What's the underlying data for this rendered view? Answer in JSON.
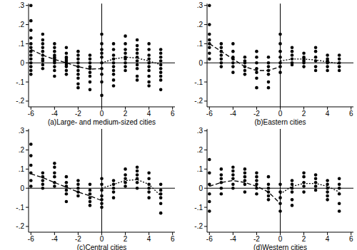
{
  "chart_data": [
    {
      "type": "scatter",
      "xlabel": "(a)Large- and medium-sized cities",
      "xlim": [
        -6.2,
        6.2
      ],
      "ylim": [
        -0.23,
        0.31
      ],
      "xticks": [
        -6,
        -4,
        -2,
        0,
        2,
        4,
        6
      ],
      "yticks": [
        {
          "value": -0.2,
          "label": "-.2"
        },
        {
          "value": -0.1,
          "label": "-.1"
        },
        0,
        {
          "value": 0.1,
          "label": ".1"
        },
        {
          "value": 0.2,
          "label": ".2"
        },
        {
          "value": 0.3,
          "label": ".3"
        }
      ],
      "annotations": [
        {
          "type": "vline",
          "x": 0
        },
        {
          "type": "hline",
          "y": 0
        }
      ],
      "series": [
        {
          "type": "scatter",
          "marker": "circle",
          "color": "#000000",
          "x": [
            -6,
            -6,
            -6,
            -6,
            -6,
            -6,
            -6,
            -6,
            -6,
            -6,
            -6,
            -6,
            -6,
            -5,
            -5,
            -5,
            -5,
            -5,
            -5,
            -5,
            -5,
            -5,
            -5,
            -4,
            -4,
            -4,
            -4,
            -4,
            -4,
            -4,
            -4,
            -4,
            -4,
            -4,
            -3,
            -3,
            -3,
            -3,
            -3,
            -3,
            -3,
            -3,
            -3,
            -3,
            -2,
            -2,
            -2,
            -2,
            -2,
            -2,
            -2,
            -2,
            -2,
            -2,
            -1,
            -1,
            -1,
            -1,
            -1,
            -1,
            -1,
            -1,
            -1,
            0,
            0,
            0,
            0,
            0,
            0,
            0,
            0,
            0,
            0,
            1,
            1,
            1,
            1,
            1,
            1,
            1,
            1,
            1,
            1,
            2,
            2,
            2,
            2,
            2,
            2,
            2,
            2,
            2,
            3,
            3,
            3,
            3,
            3,
            3,
            3,
            3,
            3,
            3,
            4,
            4,
            4,
            4,
            4,
            4,
            4,
            4,
            4,
            4,
            5,
            5,
            5,
            5,
            5,
            5,
            5,
            5,
            5,
            5
          ],
          "values": [
            0.3,
            0.22,
            0.17,
            0.13,
            0.1,
            0.08,
            0.06,
            0.04,
            0.02,
            0,
            -0.02,
            -0.04,
            -0.06,
            0.15,
            0.12,
            0.1,
            0.08,
            0.06,
            0.04,
            0.02,
            0.01,
            -0.01,
            -0.03,
            0.1,
            0.08,
            0.06,
            0.04,
            0.03,
            0.02,
            0.01,
            0,
            -0.02,
            -0.04,
            -0.07,
            0.08,
            0.05,
            0.03,
            0.02,
            0.01,
            0,
            -0.01,
            -0.02,
            -0.04,
            -0.06,
            0.06,
            0.04,
            0.02,
            0,
            -0.02,
            -0.04,
            -0.06,
            -0.08,
            -0.11,
            -0.13,
            0.04,
            0.02,
            0,
            -0.02,
            -0.03,
            -0.05,
            -0.07,
            -0.1,
            -0.14,
            0.15,
            0.1,
            0.07,
            0.05,
            0.03,
            0,
            -0.03,
            -0.06,
            -0.1,
            -0.17,
            0.1,
            0.07,
            0.04,
            0.02,
            0,
            -0.02,
            -0.04,
            -0.06,
            -0.09,
            -0.12,
            0.14,
            0.1,
            0.07,
            0.05,
            0.03,
            0.02,
            0,
            -0.02,
            -0.04,
            0.12,
            0.09,
            0.07,
            0.05,
            0.03,
            0.01,
            -0.01,
            -0.03,
            -0.07,
            -0.09,
            0.1,
            0.07,
            0.04,
            0.02,
            0,
            -0.02,
            -0.04,
            -0.07,
            -0.1,
            -0.12,
            0.07,
            0.05,
            0.03,
            0.01,
            -0.01,
            -0.03,
            -0.05,
            -0.07,
            -0.09,
            -0.14
          ]
        },
        {
          "type": "line",
          "line_style": "dashed",
          "color": "#000000",
          "x": [
            -6,
            -5,
            -4,
            -3,
            -2,
            -1,
            0
          ],
          "values": [
            0.07,
            0.04,
            0.018,
            0.0,
            -0.02,
            -0.033,
            -0.03
          ]
        },
        {
          "type": "line",
          "line_style": "dotted",
          "color": "#000000",
          "x": [
            0,
            1,
            2,
            3,
            4,
            5
          ],
          "values": [
            0.0,
            0.02,
            0.03,
            0.025,
            0.01,
            -0.01
          ]
        }
      ]
    },
    {
      "type": "scatter",
      "xlabel": "(b)Eastern cities",
      "xlim": [
        -6.2,
        6.2
      ],
      "ylim": [
        -0.23,
        0.31
      ],
      "xticks": [
        -6,
        -4,
        -2,
        0,
        2,
        4,
        6
      ],
      "yticks": [
        {
          "value": -0.2,
          "label": "-.2"
        },
        {
          "value": -0.1,
          "label": "-.1"
        },
        0,
        {
          "value": 0.1,
          "label": ".1"
        },
        {
          "value": 0.2,
          "label": ".2"
        },
        {
          "value": 0.3,
          "label": ".3"
        }
      ],
      "annotations": [
        {
          "type": "vline",
          "x": 0
        },
        {
          "type": "hline",
          "y": 0
        }
      ],
      "series": [
        {
          "type": "scatter",
          "marker": "circle",
          "color": "#000000",
          "x": [
            -6,
            -6,
            -6,
            -6,
            -6,
            -6,
            -6,
            -6,
            -5,
            -5,
            -5,
            -5,
            -5,
            -5,
            -5,
            -4,
            -4,
            -4,
            -4,
            -4,
            -4,
            -4,
            -3,
            -3,
            -3,
            -3,
            -3,
            -3,
            -2,
            -2,
            -2,
            -2,
            -2,
            -2,
            -2,
            -1,
            -1,
            -1,
            -1,
            -1,
            -1,
            -1,
            0,
            0,
            0,
            0,
            0,
            0,
            0,
            1,
            1,
            1,
            1,
            1,
            1,
            2,
            2,
            2,
            2,
            2,
            2,
            3,
            3,
            3,
            3,
            3,
            3,
            4,
            4,
            4,
            4,
            4,
            4,
            5,
            5,
            5,
            5,
            5
          ],
          "values": [
            0.3,
            0.2,
            0.15,
            0.12,
            0.1,
            0.08,
            0.05,
            0.02,
            0.1,
            0.08,
            0.06,
            0.04,
            0.02,
            0,
            -0.02,
            0.1,
            0.06,
            0.03,
            0.02,
            0,
            -0.02,
            -0.05,
            0.03,
            0.01,
            0,
            -0.02,
            -0.04,
            -0.06,
            0.06,
            0.03,
            0,
            -0.03,
            -0.05,
            -0.08,
            -0.13,
            0.03,
            0,
            -0.02,
            -0.04,
            -0.06,
            -0.1,
            -0.13,
            0.15,
            0.1,
            0.06,
            0.03,
            0,
            -0.02,
            -0.05,
            0.08,
            0.06,
            0.04,
            0.02,
            0,
            -0.01,
            0.05,
            0.03,
            0.02,
            0.01,
            0,
            -0.02,
            0.08,
            0.06,
            0.03,
            0.01,
            -0.02,
            -0.04,
            0.04,
            0.02,
            0.01,
            0,
            -0.02,
            -0.04,
            0.04,
            0.02,
            0,
            -0.02,
            -0.04
          ]
        },
        {
          "type": "line",
          "line_style": "dashed",
          "color": "#000000",
          "x": [
            -6,
            -5,
            -4,
            -3,
            -2,
            -1,
            0
          ],
          "values": [
            0.1,
            0.06,
            0.02,
            -0.02,
            -0.04,
            -0.04,
            -0.02
          ]
        },
        {
          "type": "line",
          "line_style": "dotted",
          "color": "#000000",
          "x": [
            0,
            1,
            2,
            3,
            4,
            5
          ],
          "values": [
            0.01,
            0.02,
            0.02,
            0.015,
            0.005,
            -0.005
          ]
        }
      ]
    },
    {
      "type": "scatter",
      "xlabel": "(c)Central cities",
      "xlim": [
        -6.2,
        6.2
      ],
      "ylim": [
        -0.23,
        0.31
      ],
      "xticks": [
        -6,
        -4,
        -2,
        0,
        2,
        4,
        6
      ],
      "yticks": [
        {
          "value": -0.2,
          "label": "-.2"
        },
        {
          "value": -0.1,
          "label": "-.1"
        },
        0,
        {
          "value": 0.1,
          "label": ".1"
        },
        {
          "value": 0.2,
          "label": ".2"
        },
        {
          "value": 0.3,
          "label": ".3"
        }
      ],
      "annotations": [
        {
          "type": "vline",
          "x": 0
        },
        {
          "type": "hline",
          "y": 0
        }
      ],
      "series": [
        {
          "type": "scatter",
          "marker": "circle",
          "color": "#000000",
          "x": [
            -6,
            -6,
            -6,
            -6,
            -6,
            -6,
            -5,
            -5,
            -5,
            -5,
            -5,
            -4,
            -4,
            -4,
            -4,
            -4,
            -4,
            -3,
            -3,
            -3,
            -3,
            -3,
            -3,
            -2,
            -2,
            -2,
            -2,
            -2,
            -1,
            -1,
            -1,
            -1,
            -1,
            -1,
            0,
            0,
            0,
            0,
            0,
            0,
            0,
            1,
            1,
            1,
            1,
            1,
            2,
            2,
            2,
            2,
            2,
            3,
            3,
            3,
            3,
            3,
            3,
            4,
            4,
            4,
            4,
            4,
            4,
            5,
            5,
            5,
            5,
            5,
            5
          ],
          "values": [
            0.23,
            0.17,
            0.12,
            0.08,
            0.04,
            0.01,
            0.08,
            0.06,
            0.04,
            0.02,
            0,
            0.13,
            0.11,
            0.08,
            0.06,
            0.03,
            0.01,
            0.06,
            0.03,
            0.01,
            -0.01,
            -0.03,
            -0.07,
            0.04,
            0.02,
            0,
            -0.02,
            -0.04,
            0.02,
            -0.01,
            -0.03,
            -0.05,
            -0.07,
            -0.09,
            0.05,
            0.02,
            -0.01,
            -0.04,
            -0.06,
            -0.08,
            -0.1,
            0.04,
            0.02,
            0,
            -0.02,
            -0.05,
            0.1,
            0.07,
            0.05,
            0.03,
            0.01,
            0.11,
            0.09,
            0.07,
            0.05,
            0.03,
            0,
            0.08,
            0.05,
            0.02,
            0,
            -0.02,
            -0.05,
            0.02,
            -0.01,
            -0.03,
            -0.05,
            -0.08,
            -0.13
          ]
        },
        {
          "type": "line",
          "line_style": "dashed",
          "color": "#000000",
          "x": [
            -6,
            -5,
            -4,
            -3,
            -2,
            -1,
            0
          ],
          "values": [
            0.075,
            0.055,
            0.03,
            0.005,
            -0.02,
            -0.04,
            -0.065
          ]
        },
        {
          "type": "line",
          "line_style": "dotted",
          "color": "#000000",
          "x": [
            0,
            1,
            2,
            3,
            4,
            5
          ],
          "values": [
            0.0,
            0.02,
            0.04,
            0.045,
            0.02,
            -0.04
          ]
        }
      ]
    },
    {
      "type": "scatter",
      "xlabel": "(d)Western cities",
      "xlim": [
        -6.2,
        6.2
      ],
      "ylim": [
        -0.23,
        0.31
      ],
      "xticks": [
        -6,
        -4,
        -2,
        0,
        2,
        4,
        6
      ],
      "yticks": [
        {
          "value": -0.2,
          "label": "-.2"
        },
        {
          "value": -0.1,
          "label": "-.1"
        },
        0,
        {
          "value": 0.1,
          "label": ".1"
        },
        {
          "value": 0.2,
          "label": ".2"
        },
        {
          "value": 0.3,
          "label": ".3"
        }
      ],
      "annotations": [
        {
          "type": "vline",
          "x": 0
        },
        {
          "type": "hline",
          "y": 0
        }
      ],
      "series": [
        {
          "type": "scatter",
          "marker": "circle",
          "color": "#000000",
          "x": [
            -6,
            -6,
            -6,
            -6,
            -6,
            -6,
            -5,
            -5,
            -5,
            -5,
            -5,
            -5,
            -4,
            -4,
            -4,
            -4,
            -4,
            -4,
            -3,
            -3,
            -3,
            -3,
            -3,
            -3,
            -2,
            -2,
            -2,
            -2,
            -2,
            -2,
            -1,
            -1,
            -1,
            -1,
            -1,
            -1,
            0,
            0,
            0,
            0,
            0,
            1,
            1,
            1,
            1,
            1,
            1,
            2,
            2,
            2,
            2,
            2,
            3,
            3,
            3,
            3,
            3,
            4,
            4,
            4,
            4,
            4,
            4,
            5,
            5,
            5,
            5,
            5,
            5
          ],
          "values": [
            0.15,
            0.08,
            0.02,
            -0.03,
            -0.07,
            -0.12,
            0.1,
            0.07,
            0.05,
            0.03,
            0,
            -0.03,
            0.11,
            0.09,
            0.07,
            0.05,
            0.02,
            0,
            0.1,
            0.08,
            0.06,
            0.04,
            0.02,
            -0.02,
            0.08,
            0.06,
            0.04,
            0.02,
            0,
            -0.03,
            0.06,
            0.02,
            0,
            -0.02,
            -0.04,
            -0.06,
            0.02,
            -0.02,
            -0.05,
            -0.08,
            -0.12,
            0.04,
            0.02,
            0,
            -0.02,
            -0.06,
            -0.09,
            0.08,
            0.06,
            0.03,
            0.01,
            -0.02,
            0.07,
            0.05,
            0.03,
            0.01,
            -0.01,
            0.04,
            0.02,
            0,
            -0.02,
            -0.04,
            -0.06,
            0.05,
            0.02,
            0,
            -0.03,
            -0.08,
            -0.12
          ]
        },
        {
          "type": "line",
          "line_style": "dashed",
          "color": "#000000",
          "x": [
            -6,
            -5,
            -4,
            -3,
            -2,
            -1,
            0
          ],
          "values": [
            0.01,
            0.03,
            0.04,
            0.03,
            0.01,
            -0.02,
            -0.08
          ]
        },
        {
          "type": "line",
          "line_style": "dotted",
          "color": "#000000",
          "x": [
            0,
            1,
            2,
            3,
            4,
            5
          ],
          "values": [
            -0.03,
            0.01,
            0.025,
            0.025,
            0.01,
            -0.02
          ]
        }
      ]
    }
  ]
}
